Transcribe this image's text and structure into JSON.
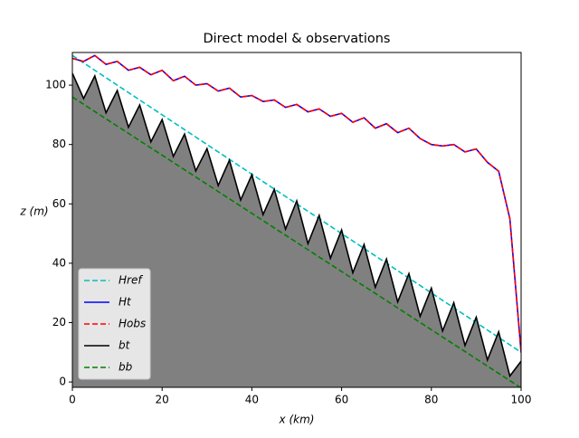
{
  "chart_data": {
    "type": "line",
    "title": "Direct model & observations",
    "xlabel": "x (km)",
    "ylabel": "z (m)",
    "xlim": [
      0,
      100
    ],
    "ylim": [
      -1.8,
      111
    ],
    "xticks": [
      0,
      20,
      40,
      60,
      80,
      100
    ],
    "yticks": [
      0,
      20,
      40,
      60,
      80,
      100
    ],
    "legend": "lower left",
    "series": [
      {
        "name": "Href",
        "color": "#00bfbf",
        "linestyle": "dashed",
        "x": [
          0,
          100
        ],
        "values": [
          110,
          10
        ]
      },
      {
        "name": "Ht",
        "color": "#0000ff",
        "linestyle": "solid",
        "x": [
          0,
          2.5,
          5,
          7.5,
          10,
          12.5,
          15,
          17.5,
          20,
          22.5,
          25,
          27.5,
          30,
          32.5,
          35,
          37.5,
          40,
          42.5,
          45,
          47.5,
          50,
          52.5,
          55,
          57.5,
          60,
          62.5,
          65,
          67.5,
          70,
          72.5,
          75,
          77.5,
          80,
          82.5,
          85,
          87.5,
          90,
          92.5,
          95,
          97.5,
          100
        ],
        "values": [
          109,
          108,
          110,
          107,
          108,
          105,
          106,
          103.5,
          105,
          101.5,
          103,
          100,
          100.5,
          98,
          99,
          96,
          96.5,
          94.5,
          95,
          92.5,
          93.5,
          91,
          92,
          89.5,
          90.5,
          87.5,
          89,
          85.5,
          87,
          84,
          85.5,
          82,
          80,
          79.5,
          80,
          77.5,
          78.5,
          74,
          71,
          55,
          10
        ]
      },
      {
        "name": "Hobs",
        "color": "#ff0000",
        "linestyle": "dashed",
        "x": [
          0,
          2.5,
          5,
          7.5,
          10,
          12.5,
          15,
          17.5,
          20,
          22.5,
          25,
          27.5,
          30,
          32.5,
          35,
          37.5,
          40,
          42.5,
          45,
          47.5,
          50,
          52.5,
          55,
          57.5,
          60,
          62.5,
          65,
          67.5,
          70,
          72.5,
          75,
          77.5,
          80,
          82.5,
          85,
          87.5,
          90,
          92.5,
          95,
          97.5,
          100
        ],
        "values": [
          109,
          108,
          110,
          107,
          108,
          105,
          106,
          103.5,
          105,
          101.5,
          103,
          100,
          100.5,
          98,
          99,
          96,
          96.5,
          94.5,
          95,
          92.5,
          93.5,
          91,
          92,
          89.5,
          90.5,
          87.5,
          89,
          85.5,
          87,
          84,
          85.5,
          82,
          80,
          79.5,
          80,
          77.5,
          78.5,
          74,
          71,
          55,
          10
        ]
      },
      {
        "name": "bt",
        "color": "#000000",
        "linestyle": "solid",
        "fill_color": "#808080",
        "x": [
          0,
          2.5,
          5,
          7.5,
          10,
          12.5,
          15,
          17.5,
          20,
          22.5,
          25,
          27.5,
          30,
          32.5,
          35,
          37.5,
          40,
          42.5,
          45,
          47.5,
          50,
          52.5,
          55,
          57.5,
          60,
          62.5,
          65,
          67.5,
          70,
          72.5,
          75,
          77.5,
          80,
          82.5,
          85,
          87.5,
          90,
          92.5,
          95,
          97.5,
          100
        ],
        "values": [
          104,
          95.5,
          103.1,
          90.7,
          98.2,
          85.8,
          93.3,
          80.9,
          88.4,
          76.0,
          83.5,
          71.1,
          78.6,
          66.2,
          74.7,
          61.3,
          69.8,
          56.4,
          64.9,
          51.5,
          61,
          46.6,
          56.1,
          41.7,
          51.2,
          36.8,
          46.3,
          31.9,
          41.4,
          27.0,
          36.5,
          22.1,
          31.6,
          17.2,
          26.7,
          12.3,
          21.8,
          7.4,
          16.9,
          2.0,
          7
        ]
      },
      {
        "name": "bb",
        "color": "#008000",
        "linestyle": "dashed",
        "x": [
          0,
          100
        ],
        "values": [
          96,
          -2
        ]
      }
    ]
  }
}
